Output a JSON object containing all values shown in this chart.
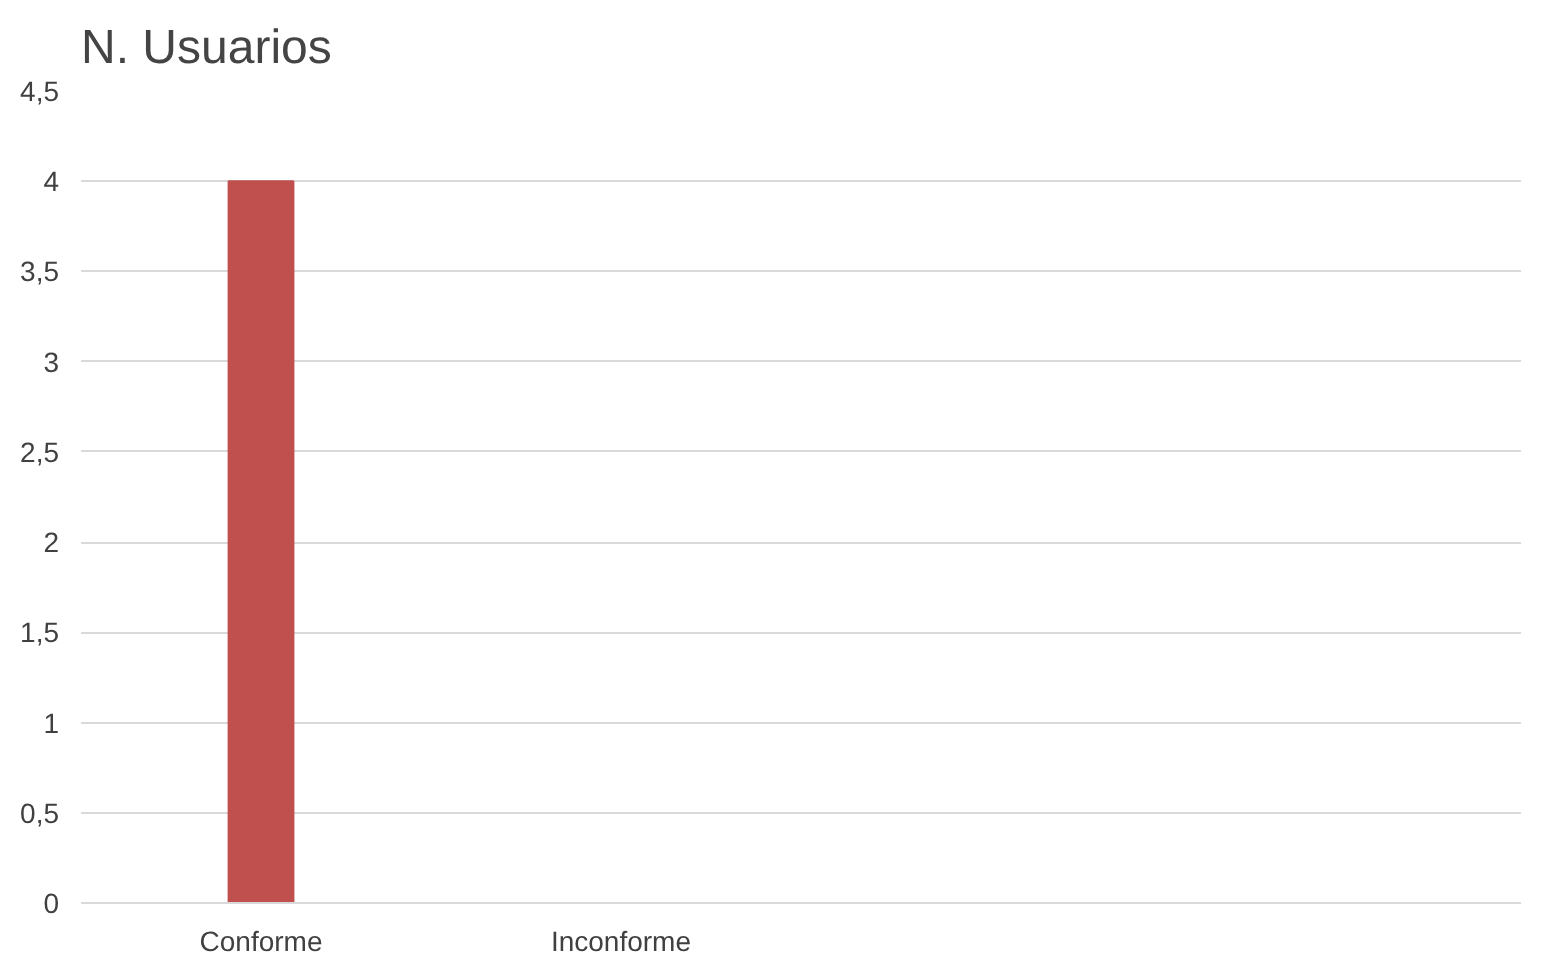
{
  "chart_data": {
    "type": "bar",
    "title": "N. Usuarios",
    "categories": [
      "Conforme",
      "Inconforme",
      null,
      null
    ],
    "values": [
      4,
      0,
      null,
      null
    ],
    "color": "#c0504d",
    "ylim": [
      0,
      4.5
    ],
    "yticks": [
      0,
      {
        "value": 0.5,
        "label": "0,5"
      },
      1,
      {
        "value": 1.5,
        "label": "1,5"
      },
      2,
      {
        "value": 2.5,
        "label": "2,5"
      },
      3,
      {
        "value": 3.5,
        "label": "3,5"
      },
      4,
      {
        "value": 4.5,
        "label": "4,5"
      }
    ],
    "grid": "y"
  }
}
